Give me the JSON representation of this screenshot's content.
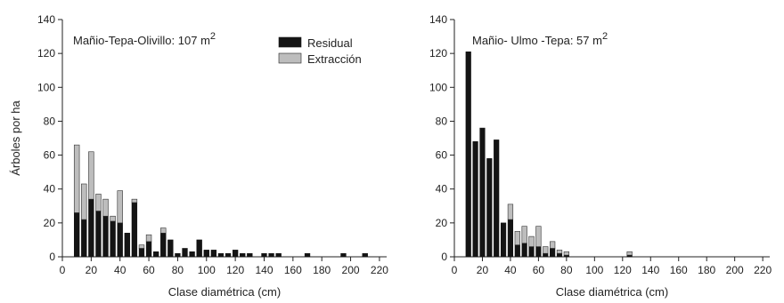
{
  "chart_data": [
    {
      "type": "bar",
      "stacked": true,
      "annotation": "Mañio-Tepa-Olivillo: 107 m",
      "annotation_sup": "2",
      "xlabel": "Clase diamétrica (cm)",
      "ylabel": "Árboles por ha",
      "xlim": [
        0,
        225
      ],
      "ylim": [
        0,
        140
      ],
      "xticks": [
        0,
        20,
        40,
        60,
        80,
        100,
        120,
        140,
        160,
        180,
        200,
        220
      ],
      "yticks": [
        0,
        20,
        40,
        60,
        80,
        100,
        120,
        140
      ],
      "legend": {
        "placement": "top-right",
        "entries": [
          "Residual",
          "Extracción"
        ]
      },
      "colors": {
        "Residual": "#141414",
        "Extracción": "#bdbdbd"
      },
      "x": [
        10,
        15,
        20,
        25,
        30,
        35,
        40,
        45,
        50,
        55,
        60,
        65,
        70,
        75,
        80,
        85,
        90,
        95,
        100,
        105,
        110,
        115,
        120,
        125,
        130,
        140,
        145,
        150,
        170,
        195,
        210
      ],
      "series": [
        {
          "name": "Residual",
          "values": [
            26,
            22,
            34,
            27,
            24,
            21,
            20,
            14,
            32,
            5,
            9,
            3,
            14,
            10,
            2,
            5,
            3,
            10,
            4,
            4,
            2,
            2,
            4,
            2,
            2,
            2,
            2,
            2,
            2,
            2,
            2
          ]
        },
        {
          "name": "Extracción",
          "values": [
            40,
            21,
            28,
            10,
            10,
            3,
            19,
            0,
            2,
            2,
            4,
            0,
            3,
            0,
            0,
            0,
            0,
            0,
            0,
            0,
            0,
            0,
            0,
            0,
            0,
            0,
            0,
            0,
            0,
            0,
            0
          ]
        }
      ]
    },
    {
      "type": "bar",
      "stacked": true,
      "annotation": "Mañio- Ulmo -Tepa: 57 m",
      "annotation_sup": "2",
      "xlabel": "Clase diamétrica (cm)",
      "ylabel": "",
      "xlim": [
        0,
        225
      ],
      "ylim": [
        0,
        140
      ],
      "xticks": [
        0,
        20,
        40,
        60,
        80,
        100,
        120,
        140,
        160,
        180,
        200,
        220
      ],
      "yticks": [
        0,
        20,
        40,
        60,
        80,
        100,
        120,
        140
      ],
      "colors": {
        "Residual": "#141414",
        "Extracción": "#bdbdbd"
      },
      "x": [
        10,
        15,
        20,
        25,
        30,
        35,
        40,
        45,
        50,
        55,
        60,
        65,
        70,
        75,
        80,
        125
      ],
      "series": [
        {
          "name": "Residual",
          "values": [
            121,
            68,
            76,
            58,
            69,
            20,
            22,
            7,
            8,
            6,
            6,
            2,
            5,
            2,
            1,
            1
          ]
        },
        {
          "name": "Extracción",
          "values": [
            0,
            0,
            0,
            0,
            0,
            0,
            9,
            8,
            10,
            6,
            12,
            4,
            4,
            2,
            2,
            2
          ]
        }
      ]
    }
  ]
}
